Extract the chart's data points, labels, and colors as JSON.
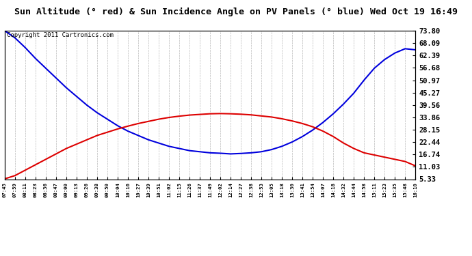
{
  "title": "Sun Altitude (° red) & Sun Incidence Angle on PV Panels (° blue) Wed Oct 19 16:49",
  "copyright": "Copyright 2011 Cartronics.com",
  "yticks": [
    5.33,
    11.03,
    16.74,
    22.44,
    28.15,
    33.86,
    39.56,
    45.27,
    50.97,
    56.68,
    62.39,
    68.09,
    73.8
  ],
  "xtick_labels": [
    "07:45",
    "07:59",
    "08:11",
    "08:23",
    "08:36",
    "08:47",
    "09:00",
    "09:13",
    "09:26",
    "09:38",
    "09:50",
    "10:04",
    "10:16",
    "10:27",
    "10:39",
    "10:51",
    "11:02",
    "11:15",
    "11:26",
    "11:37",
    "11:49",
    "12:02",
    "12:14",
    "12:27",
    "12:38",
    "12:53",
    "13:05",
    "13:18",
    "13:30",
    "13:41",
    "13:54",
    "14:07",
    "14:18",
    "14:32",
    "14:44",
    "14:58",
    "15:11",
    "15:23",
    "15:35",
    "15:48",
    "16:10"
  ],
  "ylim_min": 5.33,
  "ylim_max": 73.8,
  "background_color": "#ffffff",
  "grid_color": "#b0b0b0",
  "blue_color": "#0000dd",
  "red_color": "#dd0000",
  "title_fontsize": 9.5,
  "copyright_fontsize": 6.5,
  "blue_data": [
    73.8,
    70.5,
    66.0,
    61.0,
    56.5,
    52.0,
    47.5,
    43.5,
    39.5,
    36.0,
    33.0,
    30.0,
    27.5,
    25.5,
    23.5,
    22.0,
    20.5,
    19.5,
    18.5,
    18.0,
    17.5,
    17.3,
    17.0,
    17.2,
    17.5,
    18.0,
    19.0,
    20.5,
    22.5,
    25.0,
    28.0,
    31.5,
    35.5,
    40.0,
    45.0,
    51.0,
    56.5,
    60.5,
    63.5,
    65.5,
    65.0
  ],
  "red_data": [
    5.5,
    7.0,
    9.5,
    12.0,
    14.5,
    17.0,
    19.5,
    21.5,
    23.5,
    25.5,
    27.0,
    28.5,
    29.8,
    31.0,
    32.0,
    33.0,
    33.8,
    34.4,
    34.9,
    35.2,
    35.5,
    35.6,
    35.5,
    35.3,
    35.0,
    34.5,
    34.0,
    33.2,
    32.2,
    31.0,
    29.5,
    27.5,
    25.0,
    22.0,
    19.5,
    17.5,
    16.5,
    15.5,
    14.5,
    13.5,
    11.5
  ]
}
